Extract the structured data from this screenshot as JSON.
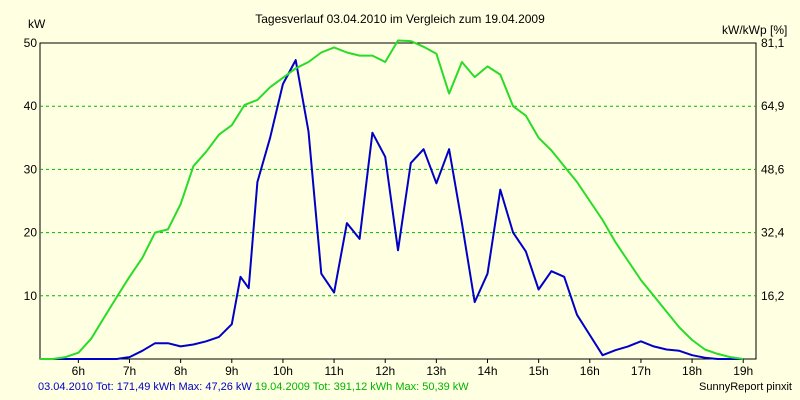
{
  "chart_data": {
    "type": "line",
    "title": "Tagesverlauf 03.04.2010 im Vergleich zum 19.04.2009",
    "ylabel_left": "kW",
    "ylabel_right": "kW/kWp [%]",
    "x_ticks": [
      "6h",
      "7h",
      "8h",
      "9h",
      "10h",
      "11h",
      "12h",
      "13h",
      "14h",
      "15h",
      "16h",
      "17h",
      "18h",
      "19h"
    ],
    "xlim": [
      5.25,
      19.25
    ],
    "ylim": [
      0,
      50
    ],
    "y_ticks": [
      10,
      20,
      30,
      40,
      50
    ],
    "y2_ticks": [
      "16,2",
      "32,4",
      "48,6",
      "64,9",
      "81,1"
    ],
    "grid": true,
    "series": [
      {
        "name": "03.04.2010",
        "color": "#0000c8",
        "x": [
          5.25,
          5.5,
          5.75,
          6,
          6.25,
          6.5,
          6.75,
          7,
          7.25,
          7.5,
          7.75,
          8,
          8.25,
          8.5,
          8.75,
          9,
          9.17,
          9.33,
          9.5,
          9.75,
          10,
          10.25,
          10.5,
          10.75,
          11,
          11.25,
          11.5,
          11.75,
          12,
          12.25,
          12.5,
          12.75,
          13,
          13.25,
          13.5,
          13.75,
          14,
          14.25,
          14.5,
          14.75,
          15,
          15.25,
          15.5,
          15.75,
          16,
          16.25,
          16.5,
          16.75,
          17,
          17.25,
          17.5,
          17.75,
          18,
          18.25,
          18.5,
          18.75,
          19
        ],
        "y": [
          0,
          0,
          0,
          0,
          0,
          0,
          0,
          0.3,
          1.3,
          2.5,
          2.5,
          2,
          2.3,
          2.8,
          3.5,
          5.5,
          13,
          11.2,
          28,
          35,
          43.5,
          47.3,
          36,
          13.5,
          10.5,
          21.5,
          19,
          35.8,
          32,
          17.2,
          31,
          33.2,
          27.8,
          33.2,
          21.5,
          9,
          13.5,
          26.8,
          20,
          17,
          11,
          13.9,
          13,
          7,
          3.8,
          0.6,
          1.4,
          2,
          2.8,
          2,
          1.5,
          1.3,
          0.6,
          0.2,
          0,
          0,
          0
        ]
      },
      {
        "name": "19.04.2009",
        "color": "#28dc28",
        "x": [
          5.25,
          5.5,
          5.75,
          6,
          6.25,
          6.5,
          6.75,
          7,
          7.25,
          7.5,
          7.75,
          8,
          8.25,
          8.5,
          8.75,
          9,
          9.25,
          9.5,
          9.75,
          10,
          10.25,
          10.5,
          10.75,
          11,
          11.25,
          11.5,
          11.75,
          12,
          12.25,
          12.5,
          12.75,
          13,
          13.25,
          13.5,
          13.75,
          14,
          14.25,
          14.5,
          14.75,
          15,
          15.25,
          15.5,
          15.75,
          16,
          16.25,
          16.5,
          16.75,
          17,
          17.25,
          17.5,
          17.75,
          18,
          18.25,
          18.5,
          18.75,
          19
        ],
        "y": [
          0,
          0,
          0.3,
          1,
          3.2,
          6.5,
          9.8,
          13,
          16,
          20,
          20.5,
          24.5,
          30.5,
          32.8,
          35.5,
          37,
          40.2,
          41,
          43,
          44.5,
          46,
          47,
          48.5,
          49.3,
          48.5,
          48,
          48,
          47,
          50.4,
          50.3,
          49.4,
          48.3,
          42,
          47,
          44.6,
          46.3,
          45,
          40,
          38.5,
          35,
          33,
          30.5,
          28,
          25,
          22,
          18.5,
          15.5,
          12.5,
          10,
          7.5,
          5,
          3,
          1.5,
          0.8,
          0.3,
          0
        ]
      }
    ]
  },
  "footer": {
    "series1_text": "03.04.2010 Tot: 171,49 kWh Max: 47,26 kW",
    "series2_text": "19.04.2009 Tot: 391,12 kWh Max: 50,39 kW",
    "brand": "SunnyReport pinxit"
  }
}
